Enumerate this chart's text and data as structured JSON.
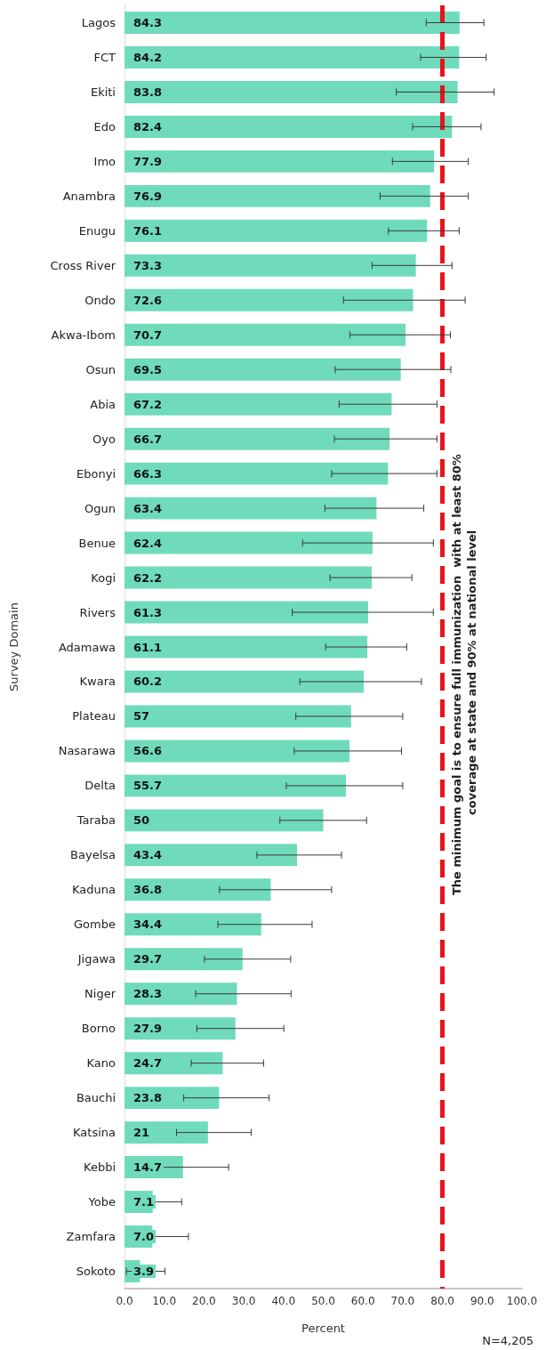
{
  "chart_data": {
    "type": "bar",
    "orientation": "horizontal",
    "xlabel": "Percent",
    "ylabel": "Survey Domain",
    "categories": [
      "Lagos",
      "FCT",
      "Ekiti",
      "Edo",
      "Imo",
      "Anambra",
      "Enugu",
      "Cross River",
      "Ondo",
      "Akwa-Ibom",
      "Osun",
      "Abia",
      "Oyo",
      "Ebonyi",
      "Ogun",
      "Benue",
      "Kogi",
      "Rivers",
      "Adamawa",
      "Kwara",
      "Plateau",
      "Nasarawa",
      "Delta",
      "Taraba",
      "Bayelsa",
      "Kaduna",
      "Gombe",
      "Jigawa",
      "Niger",
      "Borno",
      "Kano",
      "Bauchi",
      "Katsina",
      "Kebbi",
      "Yobe",
      "Zamfara",
      "Sokoto"
    ],
    "values": [
      84.3,
      84.2,
      83.8,
      82.4,
      77.9,
      76.9,
      76.1,
      73.3,
      72.6,
      70.7,
      69.5,
      67.2,
      66.7,
      66.3,
      63.4,
      62.4,
      62.2,
      61.3,
      61.1,
      60.2,
      57,
      56.6,
      55.7,
      50,
      43.4,
      36.8,
      34.4,
      29.7,
      28.3,
      27.9,
      24.7,
      23.8,
      21,
      14.7,
      7.1,
      7.0,
      3.9
    ],
    "value_labels": [
      "84.3",
      "84.2",
      "83.8",
      "82.4",
      "77.9",
      "76.9",
      "76.1",
      "73.3",
      "72.6",
      "70.7",
      "69.5",
      "67.2",
      "66.7",
      "66.3",
      "63.4",
      "62.4",
      "62.2",
      "61.3",
      "61.1",
      "60.2",
      "57",
      "56.6",
      "55.7",
      "50",
      "43.4",
      "36.8",
      "34.4",
      "29.7",
      "28.3",
      "27.9",
      "24.7",
      "23.8",
      "21",
      "14.7",
      "7.1",
      "7.0",
      "3.9"
    ],
    "errors": [
      [
        75.9,
        90.4
      ],
      [
        74.5,
        91.0
      ],
      [
        68.4,
        93.0
      ],
      [
        72.5,
        89.7
      ],
      [
        67.4,
        86.5
      ],
      [
        64.3,
        86.5
      ],
      [
        66.4,
        84.2
      ],
      [
        62.3,
        82.4
      ],
      [
        55.1,
        85.7
      ],
      [
        56.7,
        82.0
      ],
      [
        53.0,
        82.1
      ],
      [
        54.0,
        78.6
      ],
      [
        52.8,
        78.6
      ],
      [
        52.1,
        78.6
      ],
      [
        50.4,
        75.3
      ],
      [
        44.8,
        77.7
      ],
      [
        51.7,
        72.3
      ],
      [
        42.2,
        77.7
      ],
      [
        50.6,
        71.0
      ],
      [
        44.1,
        74.7
      ],
      [
        43.1,
        70.0
      ],
      [
        42.7,
        69.7
      ],
      [
        40.7,
        70.0
      ],
      [
        39.1,
        60.9
      ],
      [
        33.3,
        54.6
      ],
      [
        23.9,
        52.1
      ],
      [
        23.5,
        47.2
      ],
      [
        20.1,
        41.8
      ],
      [
        17.9,
        41.9
      ],
      [
        18.2,
        40.1
      ],
      [
        16.8,
        35.0
      ],
      [
        14.9,
        36.4
      ],
      [
        13.1,
        31.9
      ],
      [
        8.7,
        26.2
      ],
      [
        3.0,
        14.4
      ],
      [
        2.8,
        16.1
      ],
      [
        0.5,
        10.2
      ]
    ],
    "color": "#6fdbbb",
    "xlim": [
      0,
      100
    ],
    "xticks": [
      {
        "value": 0,
        "label": "0.0"
      },
      {
        "value": 10,
        "label": "10.0"
      },
      {
        "value": 20,
        "label": "20.0"
      },
      {
        "value": 30,
        "label": "30.0"
      },
      {
        "value": 40,
        "label": "40.0"
      },
      {
        "value": 50,
        "label": "50.0"
      },
      {
        "value": 60,
        "label": "60.0"
      },
      {
        "value": 70,
        "label": "70.0"
      },
      {
        "value": 80,
        "label": "80.0"
      },
      {
        "value": 90,
        "label": "90.0"
      },
      {
        "value": 100,
        "label": "100.0"
      }
    ],
    "ref_lines": [
      {
        "axis": "x",
        "value": 80,
        "label": "The minimum goal is to ensure full immunization  with at least 80% coverage at state and 90% at national level",
        "color": "#e8141b",
        "line_style": "dashed"
      }
    ],
    "annotations": [
      "N=4,205"
    ],
    "grid": false
  }
}
